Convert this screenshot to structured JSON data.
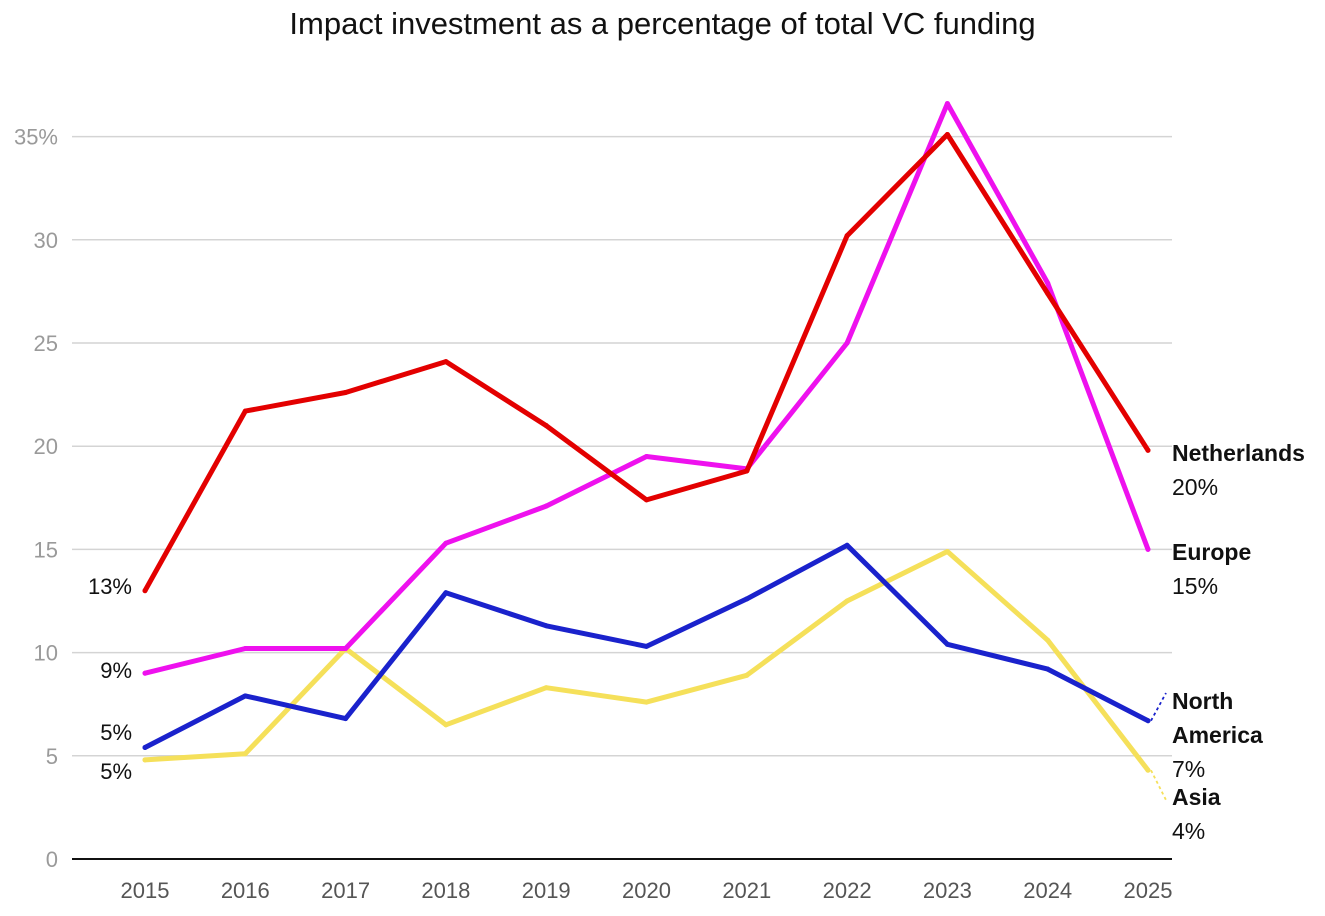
{
  "chart_data": {
    "type": "line",
    "title": "Impact investment as a percentage of total VC funding",
    "xlabel": "",
    "ylabel": "",
    "x": [
      "2015",
      "2016",
      "2017",
      "2018",
      "2019",
      "2020",
      "2021",
      "2022",
      "2023",
      "2024",
      "2025"
    ],
    "ylim": [
      0,
      37.5
    ],
    "y_ticks": [
      0,
      5,
      10,
      15,
      20,
      25,
      30,
      35
    ],
    "y_tick_labels": [
      "0",
      "5",
      "10",
      "15",
      "20",
      "25",
      "30",
      "35%"
    ],
    "grid": true,
    "series": [
      {
        "name": "Asia",
        "color": "#f5e05a",
        "values": [
          4.8,
          5.1,
          10.2,
          6.5,
          8.3,
          7.6,
          8.9,
          12.5,
          14.9,
          10.6,
          4.3
        ],
        "start_label": "5%",
        "end_label_lines": [
          "Asia"
        ],
        "end_value_label": "4%"
      },
      {
        "name": "North America",
        "color": "#1a22cc",
        "values": [
          5.4,
          7.9,
          6.8,
          12.9,
          11.3,
          10.3,
          12.6,
          15.2,
          10.4,
          9.2,
          6.7
        ],
        "start_label": "5%",
        "end_label_lines": [
          "North",
          "America"
        ],
        "end_value_label": "7%"
      },
      {
        "name": "Europe",
        "color": "#ee11ee",
        "values": [
          9.0,
          10.2,
          10.2,
          15.3,
          17.1,
          19.5,
          18.9,
          25.0,
          36.6,
          27.9,
          15.0
        ],
        "start_label": "9%",
        "end_label_lines": [
          "Europe"
        ],
        "end_value_label": "15%"
      },
      {
        "name": "Netherlands",
        "color": "#e30000",
        "values": [
          13.0,
          21.7,
          22.6,
          24.1,
          21.0,
          17.4,
          18.8,
          30.2,
          35.1,
          27.4,
          19.8
        ],
        "start_label": "13%",
        "end_label_lines": [
          "Netherlands"
        ],
        "end_value_label": "20%"
      }
    ]
  }
}
